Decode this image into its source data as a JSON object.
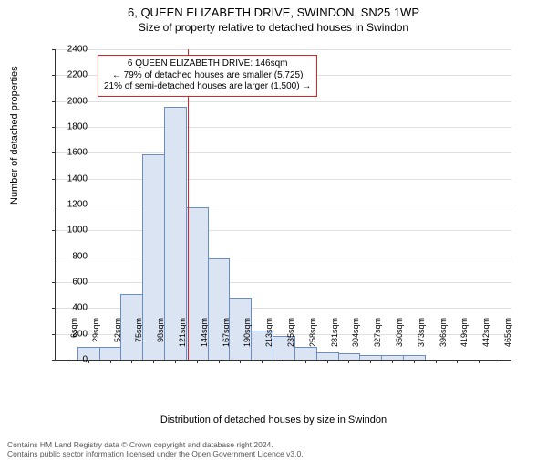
{
  "title": "6, QUEEN ELIZABETH DRIVE, SWINDON, SN25 1WP",
  "subtitle": "Size of property relative to detached houses in Swindon",
  "chart": {
    "type": "histogram",
    "xlabel": "Distribution of detached houses by size in Swindon",
    "ylabel": "Number of detached properties",
    "ylim": [
      0,
      2400
    ],
    "ytick_step": 200,
    "x_categories": [
      "6sqm",
      "29sqm",
      "52sqm",
      "75sqm",
      "98sqm",
      "121sqm",
      "144sqm",
      "167sqm",
      "190sqm",
      "213sqm",
      "235sqm",
      "258sqm",
      "281sqm",
      "304sqm",
      "327sqm",
      "350sqm",
      "373sqm",
      "396sqm",
      "419sqm",
      "442sqm",
      "465sqm"
    ],
    "values": [
      0,
      90,
      90,
      500,
      1580,
      1950,
      1170,
      780,
      470,
      220,
      180,
      90,
      50,
      40,
      30,
      30,
      30,
      0,
      0,
      0,
      0
    ],
    "bar_fill": "#dbe4f3",
    "bar_stroke": "#6a8cc7",
    "plot_bg": "#ffffff",
    "grid_color": "#e0e0e0",
    "axis_color": "#333333",
    "label_fontsize": 11,
    "tick_fontsize": 10,
    "reference_line": {
      "x_index": 6.1,
      "color": "#d62728"
    },
    "annotation": {
      "line1": "6 QUEEN ELIZABETH DRIVE: 146sqm",
      "line2": "← 79% of detached houses are smaller (5,725)",
      "line3": "21% of semi-detached houses are larger (1,500) →",
      "border_color": "#d62728",
      "bg_color": "#ffffff"
    }
  },
  "footer": {
    "line1": "Contains HM Land Registry data © Crown copyright and database right 2024.",
    "line2": "Contains public sector information licensed under the Open Government Licence v3.0."
  }
}
